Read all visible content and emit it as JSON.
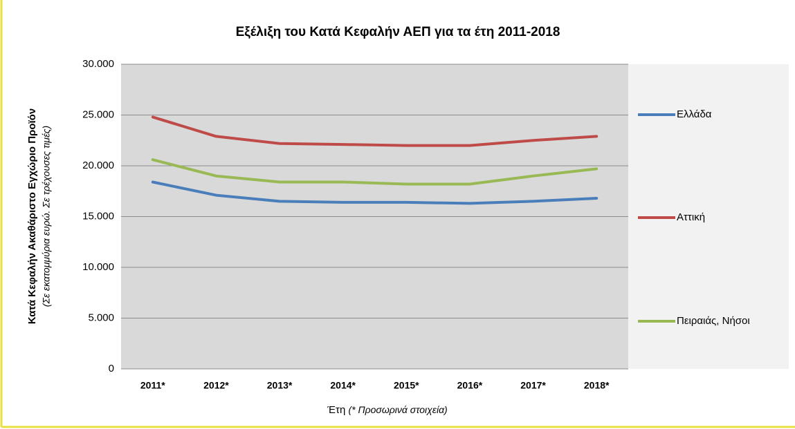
{
  "chart_data": {
    "type": "line",
    "title": "Εξέλιξη του Κατά Κεφαλήν ΑΕΠ για τα έτη 2011-2018",
    "xlabel": "Έτη",
    "xlabel_note": "(* Προσωρινά στοιχεία)",
    "ylabel": "Κατά Κεφαλήν Ακαθάριστο Εγχώριο Προϊόν",
    "ylabel_note": "(Σε εκατομμύρια ευρώ. Σε τρέχουσες τιμές)",
    "categories": [
      "2011*",
      "2012*",
      "2013*",
      "2014*",
      "2015*",
      "2016*",
      "2017*",
      "2018*"
    ],
    "series": [
      {
        "name": "Ελλάδα",
        "color": "#4a7ebb",
        "values": [
          18400,
          17100,
          16500,
          16400,
          16400,
          16300,
          16500,
          16800
        ]
      },
      {
        "name": "Αττική",
        "color": "#be4b48",
        "values": [
          24800,
          22900,
          22200,
          22100,
          22000,
          22000,
          22500,
          22900
        ]
      },
      {
        "name": "Πειραιάς, Νήσοι",
        "color": "#98b954",
        "values": [
          20600,
          19000,
          18400,
          18400,
          18200,
          18200,
          19000,
          19700
        ]
      }
    ],
    "ylim": [
      0,
      30000
    ],
    "yticks": [
      0,
      {
        "value": 5000,
        "label": "5.000"
      },
      {
        "value": 10000,
        "label": "10.000"
      },
      {
        "value": 15000,
        "label": "15.000"
      },
      {
        "value": 20000,
        "label": "20.000"
      },
      {
        "value": 25000,
        "label": "25.000"
      },
      {
        "value": 30000,
        "label": "30.000"
      }
    ],
    "grid": true,
    "legend": "right"
  }
}
